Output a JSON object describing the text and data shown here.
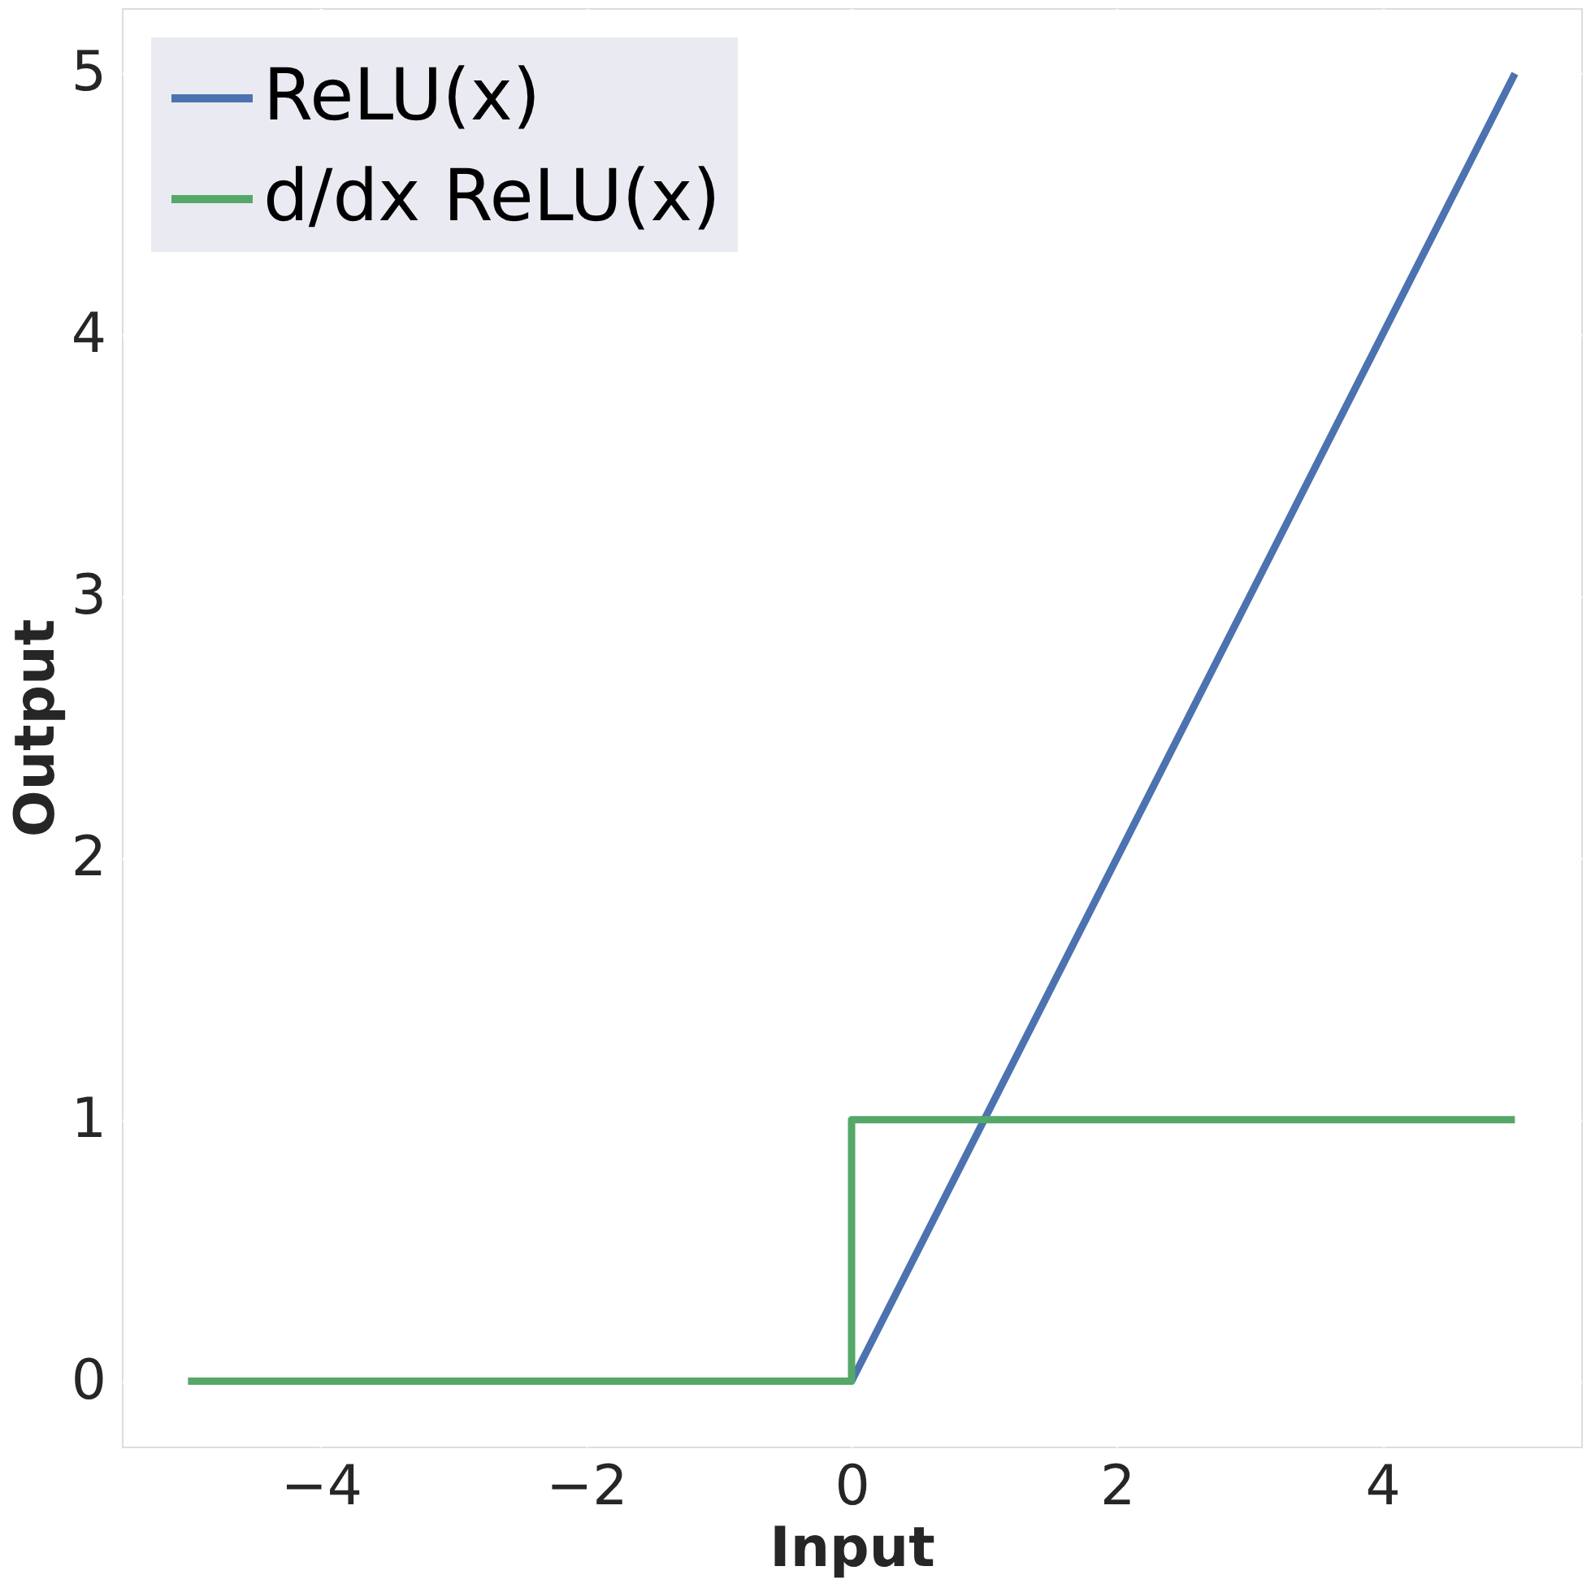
{
  "chart_data": {
    "type": "line",
    "xlabel": "Input",
    "ylabel": "Output",
    "series": [
      {
        "name": "ReLU(x)",
        "color": "#4c72b0",
        "x": [
          -5,
          0,
          5
        ],
        "values": [
          0,
          0,
          5
        ]
      },
      {
        "name": "d/dx ReLU(x)",
        "color": "#55a868",
        "x": [
          -5,
          0,
          0,
          5
        ],
        "values": [
          0,
          0,
          1,
          1
        ]
      }
    ],
    "xlim": [
      -5.5,
      5.5
    ],
    "ylim": [
      -0.25,
      5.25
    ],
    "xticks": [
      {
        "value": -4,
        "label": "−4"
      },
      {
        "value": -2,
        "label": "−2"
      },
      0,
      2,
      4
    ],
    "yticks": [
      0,
      1,
      2,
      3,
      4,
      5
    ],
    "grid": true,
    "legend": "top left",
    "line_style": "solid",
    "marker": "none"
  }
}
